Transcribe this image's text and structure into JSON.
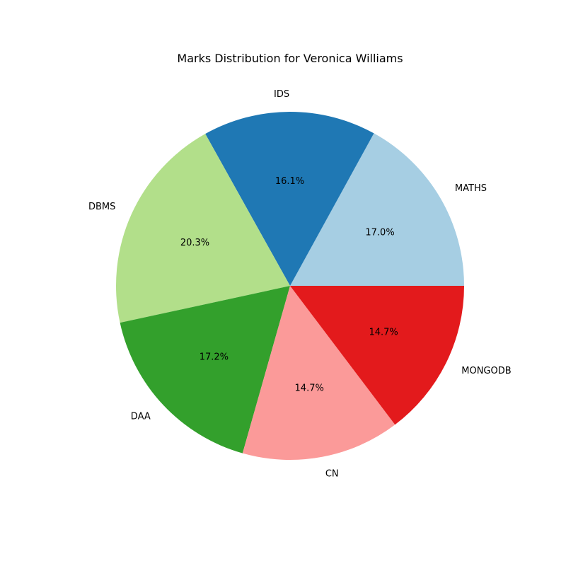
{
  "chart_data": {
    "type": "pie",
    "title": "Marks Distribution for Veronica Williams",
    "start_angle_deg": 0,
    "direction": "counterclockwise",
    "slices": [
      {
        "label": "MATHS",
        "percent": 17.0,
        "pct_text": "17.0%",
        "color": "#a6cee3"
      },
      {
        "label": "IDS",
        "percent": 16.1,
        "pct_text": "16.1%",
        "color": "#1f78b4"
      },
      {
        "label": "DBMS",
        "percent": 20.3,
        "pct_text": "20.3%",
        "color": "#b2df8a"
      },
      {
        "label": "DAA",
        "percent": 17.2,
        "pct_text": "17.2%",
        "color": "#33a02c"
      },
      {
        "label": "CN",
        "percent": 14.7,
        "pct_text": "14.7%",
        "color": "#fb9a99"
      },
      {
        "label": "MONGODB",
        "percent": 14.7,
        "pct_text": "14.7%",
        "color": "#e31a1c"
      }
    ]
  }
}
